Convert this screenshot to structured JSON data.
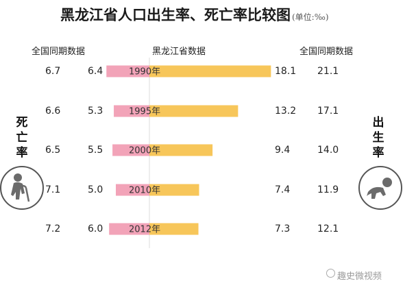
{
  "title": "黑龙江省人口出生率、死亡率比较图",
  "unit": "(单位:‰)",
  "headers": {
    "national_left": "全国同期数据",
    "heilongjiang": "黑龙江省数据",
    "national_right": "全国同期数据"
  },
  "death_rate_label": "死亡率",
  "birth_rate_label": "出生率",
  "watermark": "趣史微视频",
  "colors": {
    "death_bar": "#f2a3b8",
    "birth_bar": "#f7c65a",
    "divider": "#dddddd"
  },
  "icons": {
    "left": "elderly-person-with-cane-icon",
    "right": "crawling-baby-icon"
  },
  "chart_data": {
    "type": "bar",
    "orientation": "horizontal-diverging",
    "categories": [
      "1990年",
      "1995年",
      "2000年",
      "2010年",
      "2012年"
    ],
    "series": [
      {
        "name": "死亡率",
        "values": [
          6.4,
          5.3,
          5.5,
          5.0,
          6.0
        ]
      },
      {
        "name": "出生率",
        "values": [
          18.1,
          13.2,
          9.4,
          7.4,
          7.3
        ]
      }
    ],
    "national_death_rate": [
      6.7,
      6.6,
      6.5,
      7.1,
      7.2
    ],
    "national_birth_rate": [
      21.1,
      17.1,
      14.0,
      11.9,
      12.1
    ],
    "title": "黑龙江省人口出生率、死亡率比较图",
    "xlabel": "",
    "ylabel": "",
    "grid": false
  }
}
